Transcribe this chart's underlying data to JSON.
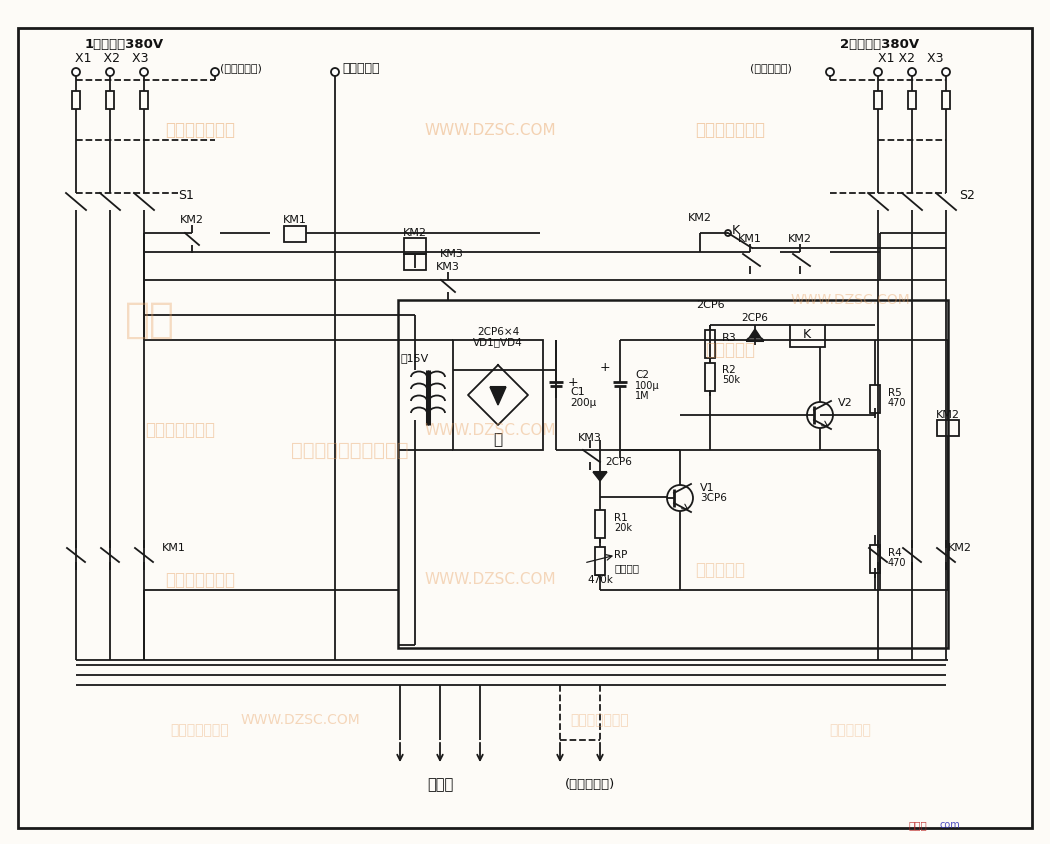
{
  "bg_color": "#FDFBF7",
  "line_color": "#1a1a1a",
  "wm_color": "#E8A060",
  "figsize": [
    10.5,
    8.44
  ],
  "dpi": 100,
  "texts": {
    "title_l": "1号电源～380V",
    "title_r": "2号电源～380V",
    "x1x2x3_l": "X1   X2   X3",
    "x1x2x3_r": "X1 X2   X3",
    "single_phase_l": "(接单相相线)",
    "single_phase_r": "(接单相相线)",
    "zero_line": "接双路零线",
    "s1": "S1",
    "s2": "S2",
    "km1": "KM1",
    "km2": "KM2",
    "km3": "KM3",
    "k": "K",
    "v1": "V1",
    "v2": "V2",
    "r1": "R1",
    "r2": "R2",
    "r3": "R3",
    "r4": "R4",
    "r5": "R5",
    "rp": "RP",
    "c1": "C1",
    "c2": "C2",
    "2cp6x4": "2CP6×4",
    "vd1vd4": "VD1～VD4",
    "15v": "～15V",
    "200u": "200μ",
    "100u": "100μ",
    "1m": "1M",
    "20k": "20k",
    "50k": "50k",
    "470k": "470k",
    "470": "470",
    "3cp6": "3CP6",
    "2cp6": "2CP6",
    "delay": "调延时间",
    "load": "接负载",
    "single_load": "(接单相负载)"
  }
}
